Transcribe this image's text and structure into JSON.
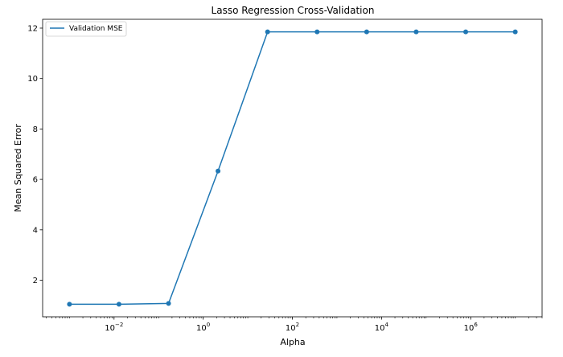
{
  "chart_data": {
    "type": "line",
    "title": "Lasso Regression Cross-Validation",
    "xlabel": "Alpha",
    "ylabel": "Mean Squared Error",
    "x_scale": "log",
    "xlim": [
      0.00025,
      40000000
    ],
    "ylim": [
      0.55,
      12.35
    ],
    "grid": false,
    "legend_position": "top-left",
    "x_ticks": [
      {
        "base": "10",
        "exp": "−2",
        "value": 0.01
      },
      {
        "base": "10",
        "exp": "0",
        "value": 1
      },
      {
        "base": "10",
        "exp": "2",
        "value": 100
      },
      {
        "base": "10",
        "exp": "4",
        "value": 10000
      },
      {
        "base": "10",
        "exp": "6",
        "value": 1000000
      }
    ],
    "y_ticks": [
      {
        "label": "2",
        "value": 2
      },
      {
        "label": "4",
        "value": 4
      },
      {
        "label": "6",
        "value": 6
      },
      {
        "label": "8",
        "value": 8
      },
      {
        "label": "10",
        "value": 10
      },
      {
        "label": "12",
        "value": 12
      }
    ],
    "series": [
      {
        "name": "Validation MSE",
        "color": "#1f77b4",
        "marker": "circle",
        "x": [
          0.001,
          0.0129,
          0.167,
          2.15,
          27.8,
          359,
          4640,
          59900,
          774000,
          10000000
        ],
        "y": [
          1.05,
          1.05,
          1.08,
          6.33,
          11.85,
          11.85,
          11.85,
          11.85,
          11.85,
          11.85
        ]
      }
    ]
  }
}
